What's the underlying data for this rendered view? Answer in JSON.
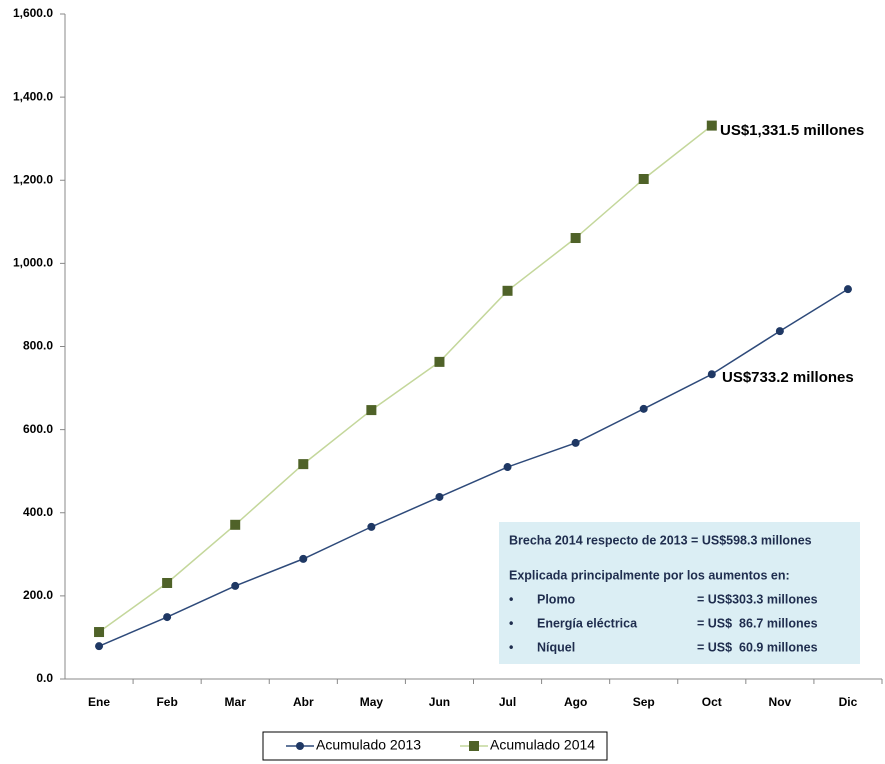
{
  "chart_data": {
    "type": "line",
    "categories": [
      "Ene",
      "Feb",
      "Mar",
      "Abr",
      "May",
      "Jun",
      "Jul",
      "Ago",
      "Sep",
      "Oct",
      "Nov",
      "Dic"
    ],
    "series": [
      {
        "name": "Acumulado 2013",
        "color": "#1f3864",
        "line_color": "#2e4a7a",
        "marker": "circle",
        "values": [
          79,
          149,
          224,
          289,
          366,
          438,
          510,
          568,
          650,
          733.2,
          837,
          938
        ]
      },
      {
        "name": "Acumulado 2014",
        "color": "#4f6228",
        "line_color": "#c4d79b",
        "marker": "square",
        "values": [
          113,
          231,
          371,
          517,
          647,
          763,
          934,
          1061,
          1203,
          1331.5,
          null,
          null
        ]
      }
    ],
    "ylim": [
      0,
      1600
    ],
    "yticks": [
      {
        "value": 0,
        "label": "0.0"
      },
      {
        "value": 200,
        "label": "200.0"
      },
      {
        "value": 400,
        "label": "400.0"
      },
      {
        "value": 600,
        "label": "600.0"
      },
      {
        "value": 800,
        "label": "800.0"
      },
      {
        "value": 1000,
        "label": "1,000.0"
      },
      {
        "value": 1200,
        "label": "1,200.0"
      },
      {
        "value": 1400,
        "label": "1,400.0"
      },
      {
        "value": 1600,
        "label": "1,600.0"
      }
    ],
    "grid": false,
    "legend": "bottom",
    "annotations": [
      {
        "text": "US$1,331.5 millones",
        "color": "#2e6b1e"
      },
      {
        "text": "US$733.2 millones",
        "color": "#1f7ac0"
      }
    ],
    "note_box": {
      "title": "Brecha 2014 respecto de 2013 = US$598.3 millones",
      "subtitle": "Explicada principalmente por los aumentos en:",
      "items": [
        {
          "label": "Plomo",
          "value": "= US$303.3 millones"
        },
        {
          "label": "Energía eléctrica",
          "value": "= US$  86.7 millones"
        },
        {
          "label": "Níquel",
          "value": "= US$  60.9 millones"
        }
      ]
    }
  }
}
